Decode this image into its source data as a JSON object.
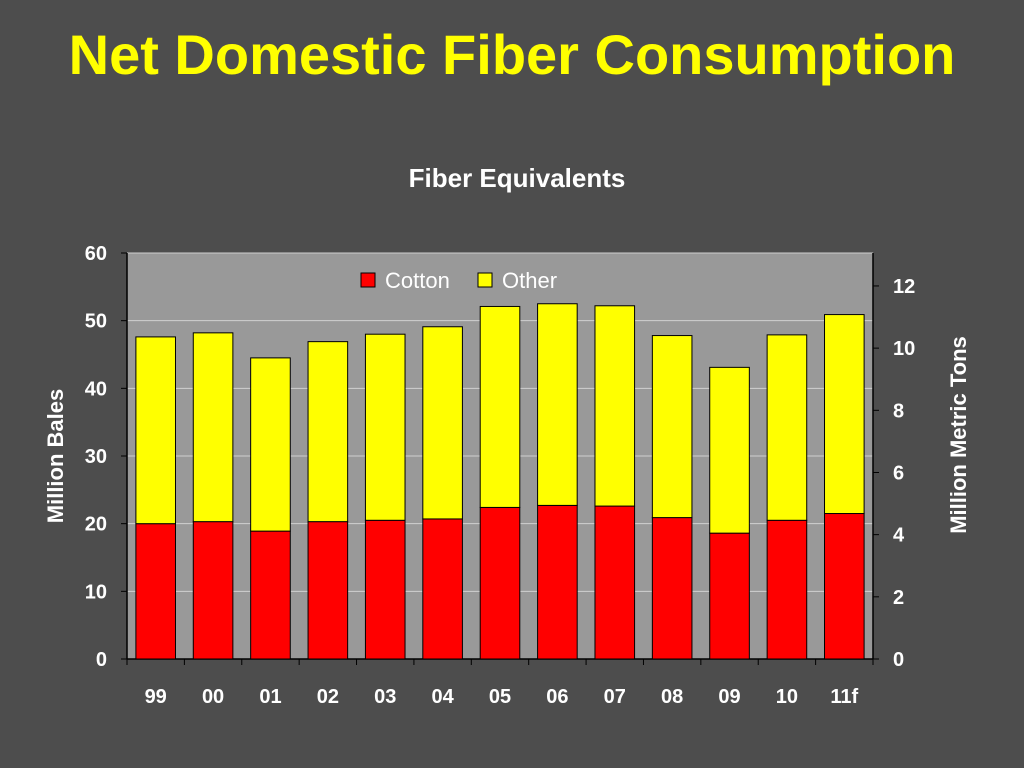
{
  "slide": {
    "title": "Net Domestic Fiber Consumption"
  },
  "colors": {
    "background": "#4d4d4d",
    "title": "#ffff00",
    "plot_area": "#999999",
    "cotton": "#ff0000",
    "other": "#ffff00",
    "text": "#ffffff"
  },
  "chart_data": {
    "type": "bar",
    "stacked": true,
    "title": "Fiber Equivalents",
    "categories": [
      "99",
      "00",
      "01",
      "02",
      "03",
      "04",
      "05",
      "06",
      "07",
      "08",
      "09",
      "10",
      "11f"
    ],
    "series": [
      {
        "name": "Cotton",
        "color": "#ff0000",
        "values": [
          20.0,
          20.3,
          18.9,
          20.3,
          20.5,
          20.7,
          22.4,
          22.7,
          22.6,
          20.9,
          18.6,
          20.5,
          21.5
        ]
      },
      {
        "name": "Other",
        "color": "#ffff00",
        "values": [
          27.6,
          27.9,
          25.6,
          26.6,
          27.5,
          28.4,
          29.7,
          29.8,
          29.6,
          26.9,
          24.5,
          27.4,
          29.4
        ]
      }
    ],
    "ylabel": "Million Bales",
    "ylim": [
      0,
      60
    ],
    "yticks": [
      "0",
      "10",
      "20",
      "30",
      "40",
      "50",
      "60"
    ],
    "y2label": "Million Metric Tons",
    "y2lim": [
      0,
      13.06
    ],
    "y2ticks": [
      "0",
      "2",
      "4",
      "6",
      "8",
      "10",
      "12"
    ],
    "grid": true,
    "legend_position": "top-center"
  }
}
